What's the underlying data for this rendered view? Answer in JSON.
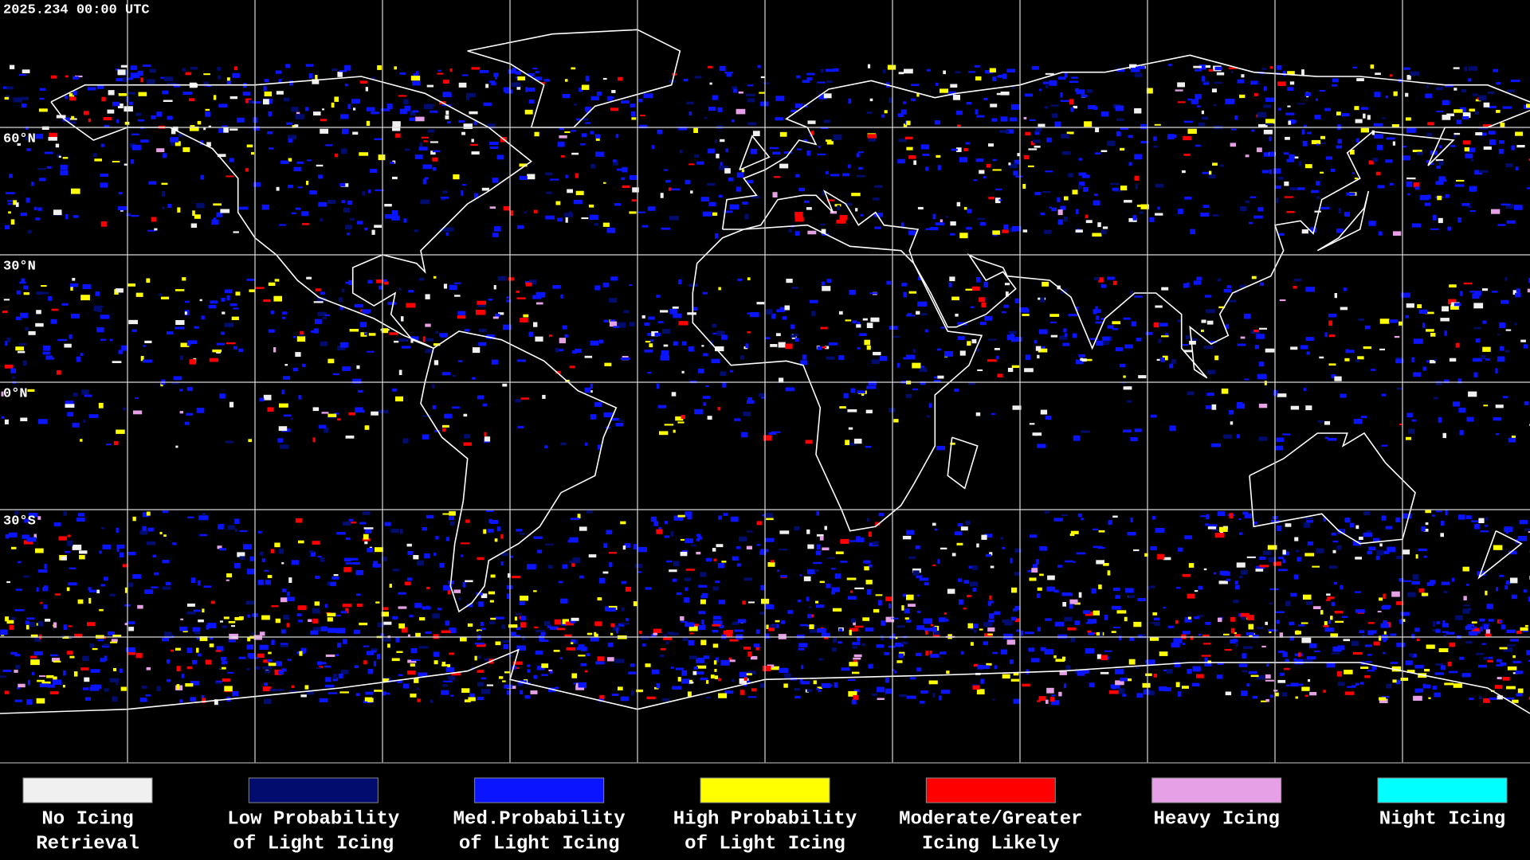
{
  "header": {
    "title": "2025.234 00:00 UTC"
  },
  "latitude_labels": [
    "60°N",
    "30°N",
    "0°N",
    "30°S"
  ],
  "legend": [
    {
      "color": "#f0f0f0",
      "label": [
        "No Icing",
        "Retrieval"
      ]
    },
    {
      "color": "#000c6e",
      "label": [
        "Low Probability",
        "of Light Icing"
      ]
    },
    {
      "color": "#0a14ff",
      "label": [
        "Med.Probability",
        "of Light Icing"
      ]
    },
    {
      "color": "#ffff00",
      "label": [
        "High Probability",
        "of Light Icing"
      ]
    },
    {
      "color": "#ff0000",
      "label": [
        "Moderate/Greater",
        "Icing Likely"
      ]
    },
    {
      "color": "#e6a0e6",
      "label": [
        "Heavy Icing"
      ]
    },
    {
      "color": "#00ffff",
      "label": [
        "Night Icing"
      ]
    }
  ]
}
